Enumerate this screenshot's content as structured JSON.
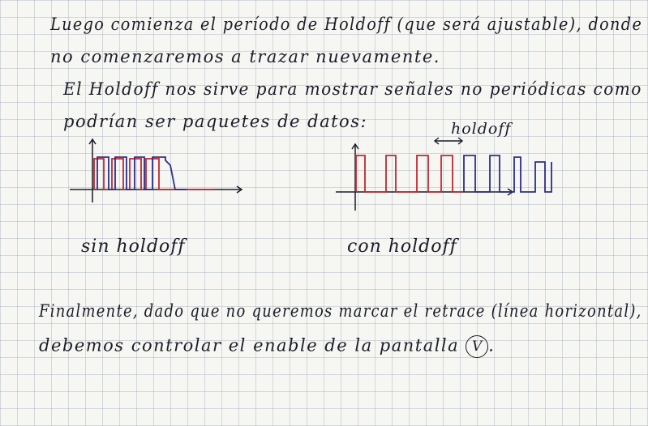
{
  "note": {
    "paragraph1": {
      "line1": "Luego comienza el período de Holdoff (que será ajustable), donde",
      "line2": "no comenzaremos a trazar nuevamente."
    },
    "paragraph2": {
      "line1": "El Holdoff nos sirve para mostrar señales no periódicas como",
      "line2": "podrían ser paquetes de datos:"
    },
    "figure_left": {
      "label": "sin holdoff"
    },
    "figure_right": {
      "label": "con holdoff",
      "annotation": "holdoff"
    },
    "paragraph3": {
      "line1": "Finalmente, dado que no queremos marcar el retrace (línea horizontal),",
      "line2": "debemos controlar el enable de la pantalla",
      "circled": "V"
    }
  },
  "colors": {
    "ink": "#1c1c28",
    "red_trace": "#c0282e",
    "blue_trace": "#2b2f8a"
  }
}
